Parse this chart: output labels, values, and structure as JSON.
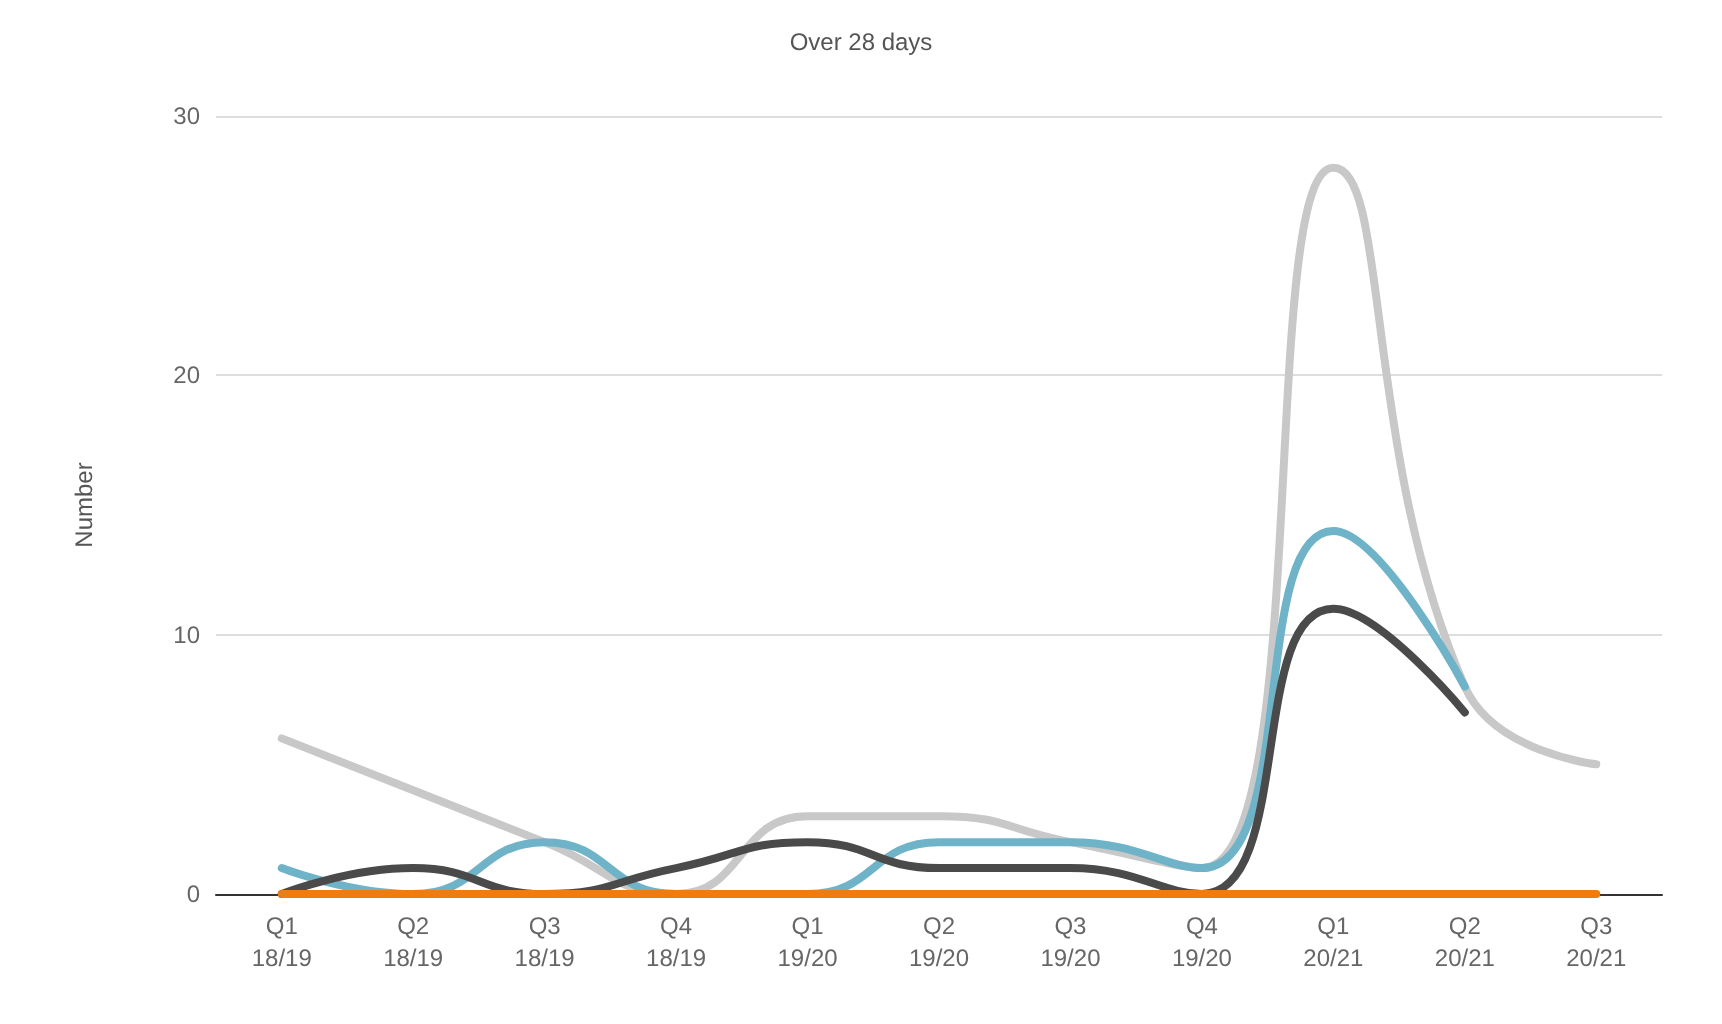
{
  "chart_data": {
    "type": "line",
    "title": "Over 28 days",
    "ylabel": "Number",
    "categories": [
      "Q1\n18/19",
      "Q2\n18/19",
      "Q3\n18/19",
      "Q4\n18/19",
      "Q1\n19/20",
      "Q2\n19/20",
      "Q3\n19/20",
      "Q4\n19/20",
      "Q1\n20/21",
      "Q2\n20/21",
      "Q3\n20/21"
    ],
    "series": [
      {
        "color": "#c8c8c8",
        "values": [
          6,
          4,
          2,
          0,
          3,
          3,
          2,
          1,
          28,
          8,
          5
        ]
      },
      {
        "color": "#6fb3c8",
        "values": [
          1,
          0,
          2,
          0,
          0,
          2,
          2,
          1,
          14,
          8,
          null
        ]
      },
      {
        "color": "#4a4a4a",
        "values": [
          0,
          1,
          0,
          1,
          2,
          1,
          1,
          0,
          11,
          7,
          null
        ]
      },
      {
        "color": "#f07c0f",
        "values": [
          0,
          0,
          0,
          0,
          0,
          0,
          0,
          0,
          0,
          0,
          0
        ]
      }
    ],
    "ylim": [
      0,
      30
    ],
    "yticks": [
      0,
      10,
      20,
      30
    ],
    "grid": "y",
    "marker": "none",
    "line_style": "solid"
  }
}
